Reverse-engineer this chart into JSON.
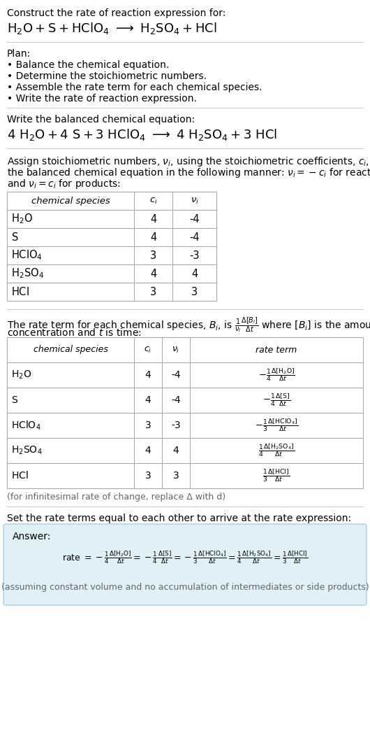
{
  "bg_color": "#ffffff",
  "text_color": "#000000",
  "gray_text": "#666666",
  "light_blue_bg": "#dff0f7",
  "table_border": "#aaaaaa",
  "sep_line_color": "#cccccc",
  "title_line1": "Construct the rate of reaction expression for:",
  "plan_header": "Plan:",
  "plan_items": [
    "• Balance the chemical equation.",
    "• Determine the stoichiometric numbers.",
    "• Assemble the rate term for each chemical species.",
    "• Write the rate of reaction expression."
  ],
  "balanced_header": "Write the balanced chemical equation:",
  "stoich_intro_lines": [
    "Assign stoichiometric numbers, $\\nu_i$, using the stoichiometric coefficients, $c_i$, from",
    "the balanced chemical equation in the following manner: $\\nu_i = -c_i$ for reactants",
    "and $\\nu_i = c_i$ for products:"
  ],
  "species": [
    "$\\mathrm{H_2O}$",
    "$\\mathrm{S}$",
    "$\\mathrm{HClO_4}$",
    "$\\mathrm{H_2SO_4}$",
    "$\\mathrm{HCl}$"
  ],
  "ci_vals": [
    "4",
    "4",
    "3",
    "4",
    "3"
  ],
  "nu_vals": [
    "-4",
    "-4",
    "-3",
    "4",
    "3"
  ],
  "rate_terms": [
    "$-\\frac{1}{4}\\frac{\\Delta[\\mathrm{H_2O}]}{\\Delta t}$",
    "$-\\frac{1}{4}\\frac{\\Delta[\\mathrm{S}]}{\\Delta t}$",
    "$-\\frac{1}{3}\\frac{\\Delta[\\mathrm{HClO_4}]}{\\Delta t}$",
    "$\\frac{1}{4}\\frac{\\Delta[\\mathrm{H_2SO_4}]}{\\Delta t}$",
    "$\\frac{1}{3}\\frac{\\Delta[\\mathrm{HCl}]}{\\Delta t}$"
  ],
  "infinitesimal_note": "(for infinitesimal rate of change, replace Δ with d)",
  "set_equal_text": "Set the rate terms equal to each other to arrive at the rate expression:",
  "answer_label": "Answer:",
  "answer_note": "(assuming constant volume and no accumulation of intermediates or side products)"
}
